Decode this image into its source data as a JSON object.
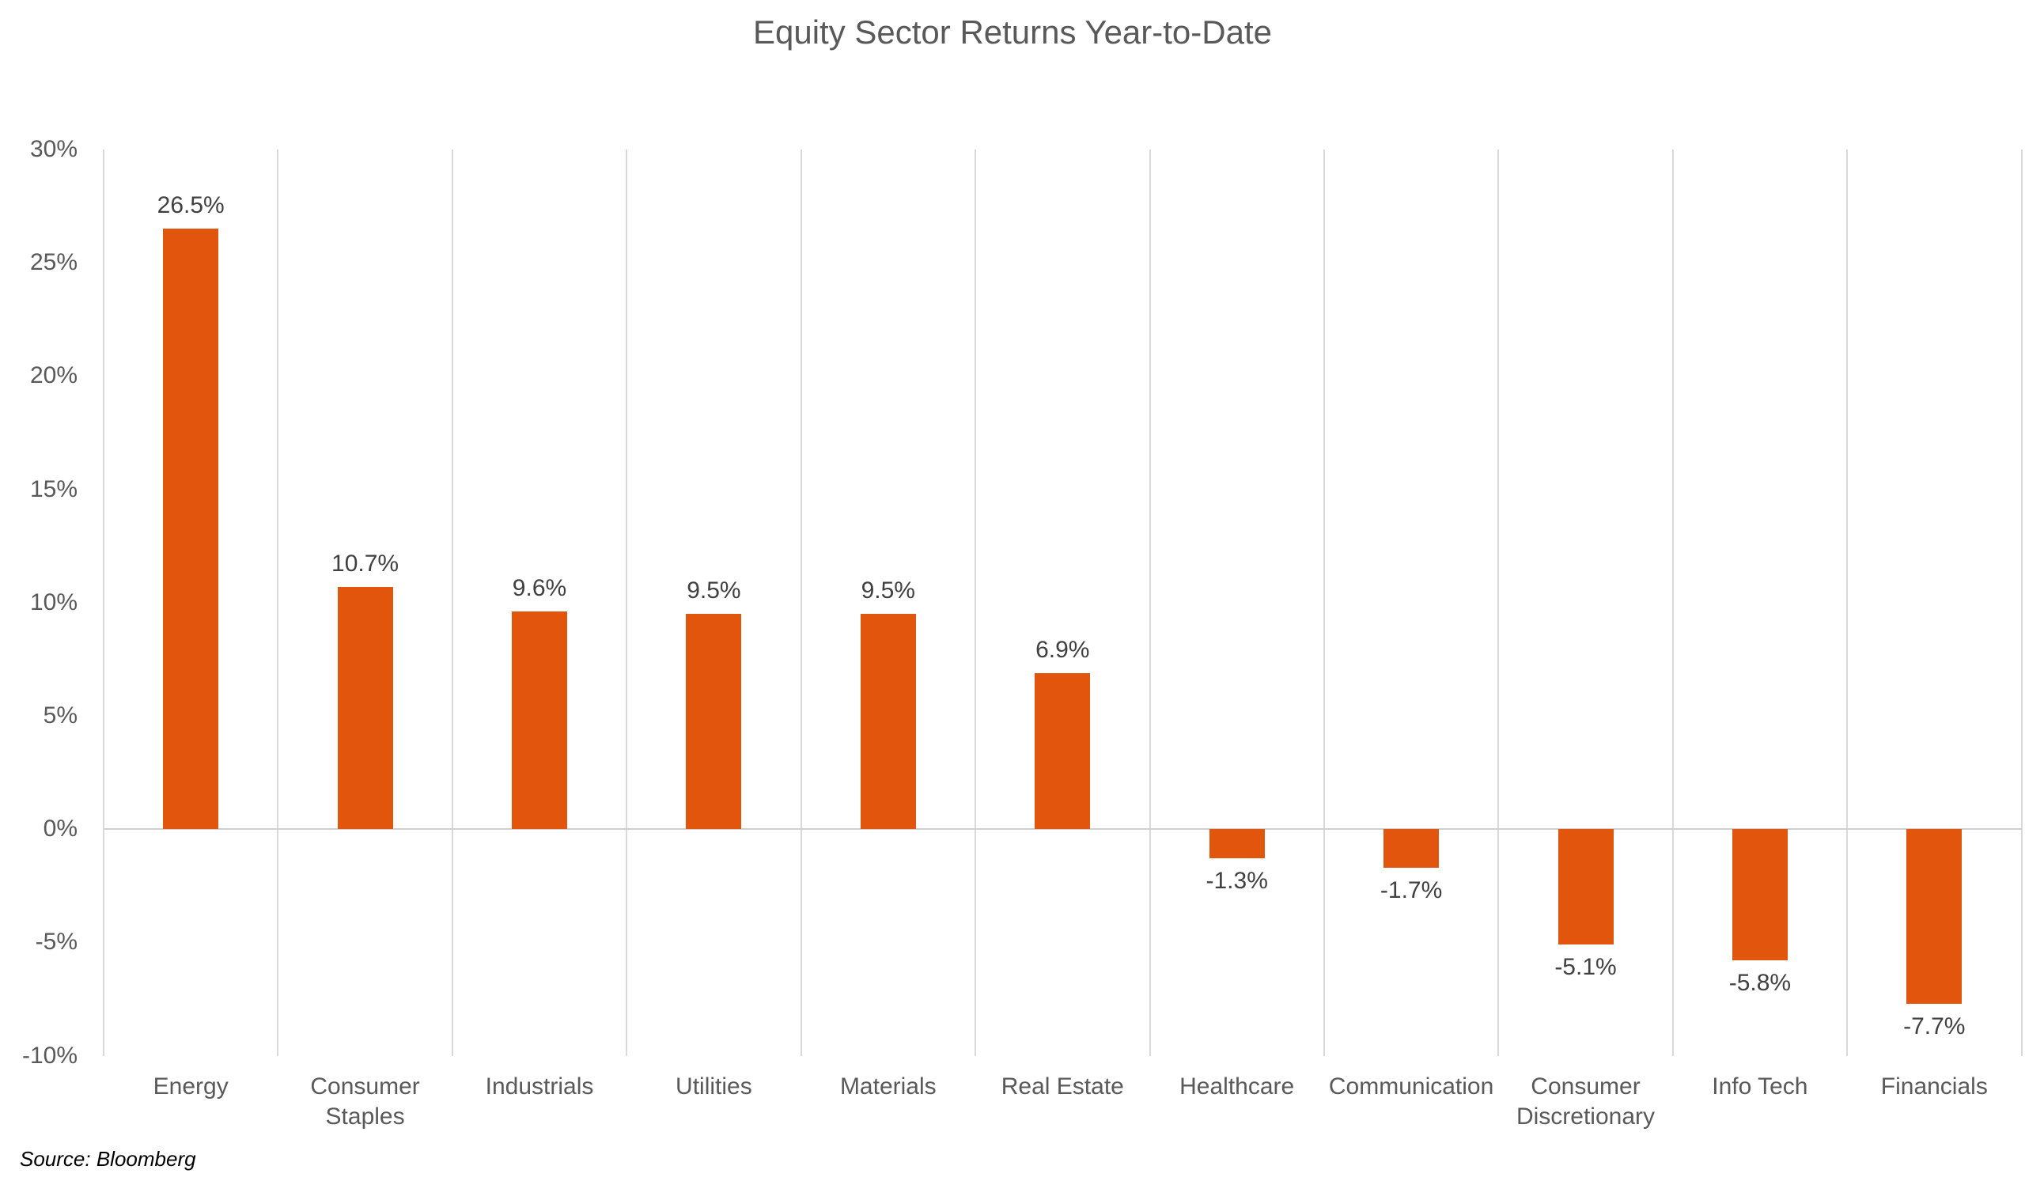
{
  "source_note": "Source: Bloomberg",
  "colors": {
    "bar": "#E2550D",
    "gridline": "#D9D9D9",
    "zero_line": "#D0D0D0",
    "title_text": "#595959",
    "axis_text": "#595959",
    "data_label_text": "#404040",
    "source_text": "#000000",
    "background": "#FFFFFF"
  },
  "chart_data": {
    "type": "bar",
    "title": "Equity Sector Returns Year-to-Date",
    "categories": [
      "Energy",
      "Consumer Staples",
      "Industrials",
      "Utilities",
      "Materials",
      "Real Estate",
      "Healthcare",
      "Communication",
      "Consumer Discretionary",
      "Info Tech",
      "Financials"
    ],
    "category_label_lines": [
      [
        "Energy"
      ],
      [
        "Consumer",
        "Staples"
      ],
      [
        "Industrials"
      ],
      [
        "Utilities"
      ],
      [
        "Materials"
      ],
      [
        "Real Estate"
      ],
      [
        "Healthcare"
      ],
      [
        "Communication"
      ],
      [
        "Consumer",
        "Discretionary"
      ],
      [
        "Info Tech"
      ],
      [
        "Financials"
      ]
    ],
    "values": [
      26.5,
      10.7,
      9.6,
      9.5,
      9.5,
      6.9,
      -1.3,
      -1.7,
      -5.1,
      -5.8,
      -7.7
    ],
    "data_labels": [
      "26.5%",
      "10.7%",
      "9.6%",
      "9.5%",
      "9.5%",
      "6.9%",
      "-1.3%",
      "-1.7%",
      "-5.1%",
      "-5.8%",
      "-7.7%"
    ],
    "xlabel": "",
    "ylabel": "",
    "ylim": [
      -10,
      30
    ],
    "ytick_step": 5,
    "ytick_labels": [
      "30%",
      "25%",
      "20%",
      "15%",
      "10%",
      "5%",
      "0%",
      "-5%",
      "-10%"
    ],
    "ytick_values": [
      30,
      25,
      20,
      15,
      10,
      5,
      0,
      -5,
      -10
    ],
    "grid": "vertical lines at category boundaries, horizontal axis line at 0%",
    "legend": "none",
    "source": "Source: Bloomberg"
  }
}
